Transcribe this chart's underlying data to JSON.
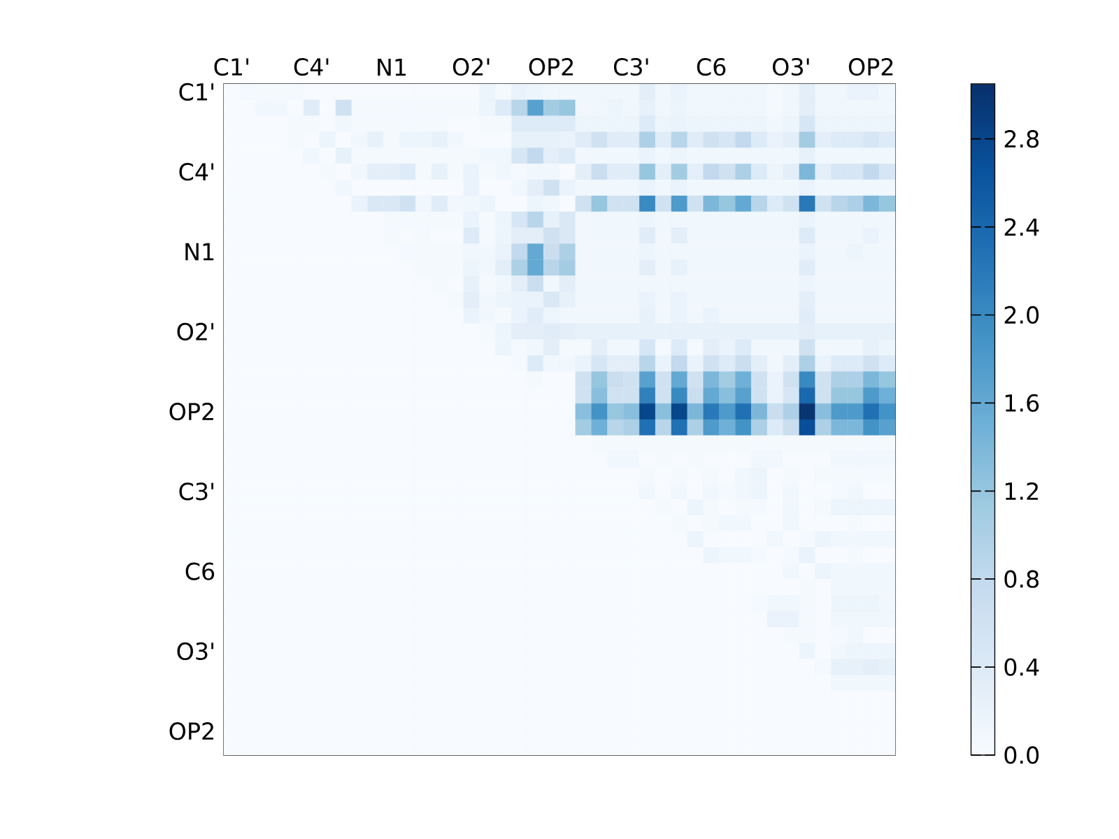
{
  "chart_data": {
    "type": "heatmap",
    "categories": [
      "C1'",
      null,
      null,
      null,
      null,
      "C4'",
      null,
      null,
      null,
      null,
      "N1",
      null,
      null,
      null,
      null,
      "O2'",
      null,
      null,
      null,
      null,
      "OP2",
      null,
      null,
      null,
      null,
      "C3'",
      null,
      null,
      null,
      null,
      "C6",
      null,
      null,
      null,
      null,
      "O3'",
      null,
      null,
      null,
      null,
      "OP2",
      null
    ],
    "y_categories": [
      "C1'",
      null,
      null,
      null,
      null,
      "C4'",
      null,
      null,
      null,
      null,
      "N1",
      null,
      null,
      null,
      null,
      "O2'",
      null,
      null,
      null,
      null,
      "OP2",
      null,
      null,
      null,
      null,
      "C3'",
      null,
      null,
      null,
      null,
      "C6",
      null,
      null,
      null,
      null,
      "O3'",
      null,
      null,
      null,
      null,
      "OP2",
      null
    ],
    "clim": [
      0,
      3.05
    ],
    "cticks": [
      {
        "value": 0,
        "label": "0.0"
      },
      0.4,
      0.8,
      1.2,
      1.6,
      {
        "value": 2,
        "label": "2.0"
      },
      2.4,
      2.8
    ],
    "cells": [
      [
        0,
        0.05,
        0.05,
        0.05,
        0.05,
        0,
        0,
        0,
        0,
        0,
        0,
        0,
        0,
        0,
        0,
        0,
        0.15,
        0.05,
        0.2,
        0.15,
        0.1,
        0.1,
        0.1,
        0.1,
        0.1,
        0.1,
        0.3,
        0.1,
        0.2,
        0.1,
        0.1,
        0.1,
        0.1,
        0.1,
        0.05,
        0.1,
        0.3,
        0.1,
        0.1,
        0.2,
        0.2,
        0.1
      ],
      [
        0,
        0,
        0.1,
        0.1,
        0,
        0.35,
        0,
        0.6,
        0.05,
        0.05,
        0.05,
        0.05,
        0.05,
        0.05,
        0.05,
        0.05,
        0.15,
        0.4,
        0.9,
        1.7,
        1.1,
        1.2,
        0.1,
        0.1,
        0.15,
        0.1,
        0.25,
        0.1,
        0.15,
        0.1,
        0.1,
        0.1,
        0.1,
        0.1,
        0.05,
        0.1,
        0.3,
        0.1,
        0.1,
        0.1,
        0.1,
        0.1
      ],
      [
        0,
        0,
        0,
        0,
        0.05,
        0.05,
        0,
        0.1,
        0.05,
        0.05,
        0.05,
        0.05,
        0.05,
        0.05,
        0,
        0,
        0.05,
        0.05,
        0.4,
        0.4,
        0.4,
        0.4,
        0.15,
        0.15,
        0.15,
        0.15,
        0.4,
        0.15,
        0.2,
        0.15,
        0.15,
        0.15,
        0.15,
        0.15,
        0.1,
        0.15,
        0.5,
        0.15,
        0.15,
        0.15,
        0.15,
        0.15
      ],
      [
        0,
        0,
        0,
        0,
        0.05,
        0,
        0.15,
        0,
        0.1,
        0.25,
        0.05,
        0.15,
        0.15,
        0.25,
        0.1,
        0,
        0,
        0,
        0.25,
        0.25,
        0.25,
        0.2,
        0.35,
        0.6,
        0.35,
        0.35,
        1.0,
        0.35,
        0.9,
        0.35,
        0.6,
        0.5,
        0.8,
        0.4,
        0.2,
        0.3,
        1.1,
        0.3,
        0.4,
        0.4,
        0.5,
        0.4
      ],
      [
        0,
        0,
        0,
        0,
        0,
        0.1,
        0,
        0.25,
        0.05,
        0.05,
        0.05,
        0.05,
        0.05,
        0.05,
        0.05,
        0.05,
        0.1,
        0.1,
        0.5,
        0.8,
        0.3,
        0.4,
        0.1,
        0.1,
        0.1,
        0.1,
        0.2,
        0.1,
        0.15,
        0.1,
        0.1,
        0.1,
        0.1,
        0.1,
        0.1,
        0.1,
        0.25,
        0.1,
        0.1,
        0.1,
        0.1,
        0.1
      ],
      [
        0,
        0,
        0,
        0,
        0,
        0,
        0.05,
        0,
        0.1,
        0.3,
        0.3,
        0.4,
        0.05,
        0.25,
        0.05,
        0.2,
        0.05,
        0.1,
        0.05,
        0.1,
        0.1,
        0,
        0.3,
        0.7,
        0.35,
        0.35,
        1.2,
        0.3,
        1.1,
        0.3,
        0.8,
        0.6,
        1.0,
        0.4,
        0.15,
        0.3,
        1.4,
        0.3,
        0.5,
        0.5,
        0.8,
        0.5
      ],
      [
        0,
        0,
        0,
        0,
        0,
        0,
        0,
        0.1,
        0,
        0,
        0,
        0,
        0,
        0,
        0,
        0.2,
        0,
        0,
        0.1,
        0.3,
        0.6,
        0.2,
        0.1,
        0.1,
        0.1,
        0.1,
        0.2,
        0.1,
        0.2,
        0.1,
        0.1,
        0.1,
        0.1,
        0.1,
        0.1,
        0.1,
        0.2,
        0.1,
        0.1,
        0.1,
        0.1,
        0.1
      ],
      [
        0,
        0,
        0,
        0,
        0,
        0,
        0,
        0,
        0.2,
        0.45,
        0.45,
        0.6,
        0.1,
        0.35,
        0.1,
        0.1,
        0.15,
        0,
        0,
        0.15,
        0.1,
        0,
        0.6,
        1.2,
        0.6,
        0.6,
        2.0,
        0.6,
        1.8,
        0.6,
        1.4,
        1.2,
        1.6,
        0.9,
        0.4,
        0.6,
        2.2,
        0.6,
        0.9,
        1.0,
        1.4,
        1.2
      ],
      [
        0,
        0,
        0,
        0,
        0,
        0,
        0,
        0,
        0,
        0,
        0.05,
        0.05,
        0.05,
        0.05,
        0.05,
        0.2,
        0.05,
        0.15,
        0.5,
        0.9,
        0.25,
        0.45,
        0.1,
        0.1,
        0.1,
        0.1,
        0.15,
        0.1,
        0.1,
        0.1,
        0.1,
        0.1,
        0.1,
        0.1,
        0.1,
        0.1,
        0.2,
        0.1,
        0.1,
        0.1,
        0.1,
        0.1
      ],
      [
        0,
        0,
        0,
        0,
        0,
        0,
        0,
        0,
        0,
        0,
        0.05,
        0,
        0.05,
        0,
        0,
        0.4,
        0.05,
        0.15,
        0.3,
        0.3,
        0.6,
        0.45,
        0.1,
        0.1,
        0.1,
        0.1,
        0.35,
        0.1,
        0.3,
        0.1,
        0.1,
        0.1,
        0.1,
        0.1,
        0.1,
        0.1,
        0.4,
        0.1,
        0.1,
        0.1,
        0.2,
        0.1
      ],
      [
        0,
        0,
        0,
        0,
        0,
        0,
        0,
        0,
        0,
        0,
        0,
        0.05,
        0.05,
        0.05,
        0.05,
        0.1,
        0.1,
        0.2,
        0.8,
        1.6,
        0.7,
        1.0,
        0.1,
        0.1,
        0.1,
        0.1,
        0.15,
        0.1,
        0.1,
        0.1,
        0.1,
        0.1,
        0.1,
        0.1,
        0.1,
        0.1,
        0.2,
        0.1,
        0.1,
        0.15,
        0.1,
        0.1
      ],
      [
        0,
        0,
        0,
        0,
        0,
        0,
        0,
        0,
        0,
        0,
        0,
        0,
        0.05,
        0.05,
        0.05,
        0.15,
        0.1,
        0.3,
        1.0,
        1.6,
        0.9,
        1.1,
        0.1,
        0.1,
        0.1,
        0.1,
        0.3,
        0.1,
        0.25,
        0.1,
        0.1,
        0.1,
        0.1,
        0.1,
        0.1,
        0.1,
        0.35,
        0.1,
        0.1,
        0.1,
        0.1,
        0.1
      ],
      [
        0,
        0,
        0,
        0,
        0,
        0,
        0,
        0,
        0,
        0,
        0,
        0,
        0,
        0.05,
        0,
        0.25,
        0.05,
        0.1,
        0.3,
        0.7,
        0.1,
        0.3,
        0.1,
        0.1,
        0.1,
        0.1,
        0.1,
        0.1,
        0.1,
        0.1,
        0.1,
        0.1,
        0.1,
        0.1,
        0.1,
        0.1,
        0.15,
        0.1,
        0.1,
        0.1,
        0.1,
        0.1
      ],
      [
        0,
        0,
        0,
        0,
        0,
        0,
        0,
        0,
        0,
        0,
        0,
        0,
        0,
        0,
        0.05,
        0.3,
        0.1,
        0.15,
        0.2,
        0.2,
        0.45,
        0.25,
        0.1,
        0.1,
        0.1,
        0.1,
        0.2,
        0.1,
        0.2,
        0.1,
        0.1,
        0.1,
        0.1,
        0.1,
        0.1,
        0.1,
        0.3,
        0.1,
        0.1,
        0.1,
        0.1,
        0.1
      ],
      [
        0,
        0,
        0,
        0,
        0,
        0,
        0,
        0,
        0,
        0,
        0,
        0,
        0,
        0,
        0,
        0.2,
        0.1,
        0.05,
        0.2,
        0.35,
        0.15,
        0.1,
        0.1,
        0.1,
        0.1,
        0.1,
        0.25,
        0.1,
        0.2,
        0.1,
        0.2,
        0.1,
        0.1,
        0.1,
        0.1,
        0.1,
        0.35,
        0.1,
        0.1,
        0.1,
        0.1,
        0.1
      ],
      [
        0,
        0,
        0,
        0,
        0,
        0,
        0,
        0,
        0,
        0,
        0,
        0,
        0,
        0,
        0,
        0,
        0.05,
        0.15,
        0.3,
        0.3,
        0.35,
        0.3,
        0.25,
        0.25,
        0.25,
        0.25,
        0.25,
        0.25,
        0.25,
        0.25,
        0.25,
        0.25,
        0.25,
        0.25,
        0.25,
        0.25,
        0.3,
        0.25,
        0.25,
        0.25,
        0.25,
        0.25
      ],
      [
        0,
        0,
        0,
        0,
        0,
        0,
        0,
        0,
        0,
        0,
        0,
        0,
        0,
        0,
        0,
        0,
        0,
        0.15,
        0.05,
        0.1,
        0.3,
        0.05,
        0.05,
        0.3,
        0.1,
        0.1,
        0.5,
        0.05,
        0.4,
        0.05,
        0.3,
        0.2,
        0.4,
        0.1,
        0.1,
        0.1,
        0.6,
        0.1,
        0.1,
        0.1,
        0.25,
        0.15
      ],
      [
        0,
        0,
        0,
        0,
        0,
        0,
        0,
        0,
        0,
        0,
        0,
        0,
        0,
        0,
        0,
        0,
        0,
        0,
        0.05,
        0.4,
        0.1,
        0.1,
        0.2,
        0.5,
        0.3,
        0.3,
        0.9,
        0.2,
        0.8,
        0.2,
        0.6,
        0.4,
        0.7,
        0.3,
        0.1,
        0.3,
        1.0,
        0.2,
        0.4,
        0.4,
        0.6,
        0.4
      ],
      [
        0,
        0,
        0,
        0,
        0,
        0,
        0,
        0,
        0,
        0,
        0,
        0,
        0,
        0,
        0,
        0,
        0,
        0,
        0,
        0.05,
        0,
        0,
        0.6,
        1.2,
        0.7,
        0.6,
        1.7,
        0.6,
        1.6,
        0.6,
        1.4,
        1.1,
        1.5,
        0.6,
        0.2,
        0.6,
        2.0,
        0.6,
        1.0,
        1.0,
        1.4,
        1.2
      ],
      [
        0,
        0,
        0,
        0,
        0,
        0,
        0,
        0,
        0,
        0,
        0,
        0,
        0,
        0,
        0,
        0,
        0,
        0,
        0,
        0,
        0,
        0,
        0.6,
        1.3,
        0.6,
        0.6,
        2.1,
        0.6,
        2.0,
        0.7,
        1.6,
        1.3,
        1.7,
        0.6,
        0.2,
        0.5,
        2.4,
        0.6,
        1.2,
        1.2,
        1.8,
        1.5
      ],
      [
        0,
        0,
        0,
        0,
        0,
        0,
        0,
        0,
        0,
        0,
        0,
        0,
        0,
        0,
        0,
        0,
        0,
        0,
        0,
        0,
        0,
        0,
        1.3,
        1.9,
        1.2,
        1.3,
        2.8,
        1.3,
        2.8,
        1.4,
        2.2,
        1.8,
        2.3,
        1.4,
        0.7,
        1.0,
        3.0,
        1.3,
        1.8,
        1.8,
        2.3,
        1.9
      ],
      [
        0,
        0,
        0,
        0,
        0,
        0,
        0,
        0,
        0,
        0,
        0,
        0,
        0,
        0,
        0,
        0,
        0,
        0,
        0,
        0,
        0,
        0,
        1.1,
        1.5,
        0.9,
        1.0,
        2.3,
        0.9,
        2.3,
        1.0,
        1.8,
        1.5,
        1.9,
        1.0,
        0.4,
        0.7,
        2.7,
        1.0,
        1.4,
        1.4,
        1.9,
        1.7
      ],
      [
        0,
        0,
        0,
        0,
        0,
        0,
        0,
        0,
        0,
        0,
        0,
        0,
        0,
        0,
        0,
        0,
        0,
        0,
        0,
        0,
        0,
        0,
        0,
        0.05,
        0.05,
        0.05,
        0.05,
        0.05,
        0.05,
        0.05,
        0.05,
        0.05,
        0.05,
        0.05,
        0.05,
        0.05,
        0.05,
        0.05,
        0.05,
        0.05,
        0.05,
        0.05
      ],
      [
        0,
        0,
        0,
        0,
        0,
        0,
        0,
        0,
        0,
        0,
        0,
        0,
        0,
        0,
        0,
        0,
        0,
        0,
        0,
        0,
        0,
        0,
        0,
        0,
        0.1,
        0.1,
        0,
        0.05,
        0,
        0.05,
        0,
        0,
        0,
        0.1,
        0.1,
        0,
        0,
        0,
        0.1,
        0.1,
        0.1,
        0.1
      ],
      [
        0,
        0,
        0,
        0,
        0,
        0,
        0,
        0,
        0,
        0,
        0,
        0,
        0,
        0,
        0,
        0,
        0,
        0,
        0,
        0,
        0,
        0,
        0,
        0,
        0,
        0,
        0.05,
        0,
        0.05,
        0,
        0.05,
        0,
        0.1,
        0.15,
        0,
        0.05,
        0,
        0.05,
        0.05,
        0.05,
        0.05,
        0.05
      ],
      [
        0,
        0,
        0,
        0,
        0,
        0,
        0,
        0,
        0,
        0,
        0,
        0,
        0,
        0,
        0,
        0,
        0,
        0,
        0,
        0,
        0,
        0,
        0,
        0,
        0,
        0,
        0.1,
        0,
        0.1,
        0,
        0.1,
        0.05,
        0.1,
        0.15,
        0,
        0.1,
        0,
        0,
        0.05,
        0.1,
        0,
        0
      ],
      [
        0,
        0,
        0,
        0,
        0,
        0,
        0,
        0,
        0,
        0,
        0,
        0,
        0,
        0,
        0,
        0,
        0,
        0,
        0,
        0,
        0,
        0,
        0,
        0,
        0,
        0,
        0,
        0.05,
        0,
        0.15,
        0.05,
        0,
        0.05,
        0.05,
        0,
        0.1,
        0,
        0.05,
        0.15,
        0.15,
        0.15,
        0.15
      ],
      [
        0,
        0,
        0,
        0,
        0,
        0,
        0,
        0,
        0,
        0,
        0,
        0,
        0,
        0,
        0,
        0,
        0,
        0,
        0,
        0,
        0,
        0,
        0,
        0,
        0,
        0,
        0,
        0,
        0.05,
        0,
        0.05,
        0.1,
        0.1,
        0,
        0,
        0.1,
        0,
        0,
        0,
        0.05,
        0,
        0
      ],
      [
        0,
        0,
        0,
        0,
        0,
        0,
        0,
        0,
        0,
        0,
        0,
        0,
        0,
        0,
        0,
        0,
        0,
        0,
        0,
        0,
        0,
        0,
        0,
        0,
        0,
        0,
        0,
        0,
        0,
        0.15,
        0,
        0,
        0,
        0,
        0.1,
        0,
        0.05,
        0.15,
        0.1,
        0.1,
        0.1,
        0.1
      ],
      [
        0,
        0,
        0,
        0,
        0,
        0,
        0,
        0,
        0,
        0,
        0,
        0,
        0,
        0,
        0,
        0,
        0,
        0,
        0,
        0,
        0,
        0,
        0,
        0,
        0,
        0,
        0,
        0,
        0,
        0,
        0.15,
        0.1,
        0.1,
        0.05,
        0,
        0.05,
        0.2,
        0,
        0,
        0.05,
        0,
        0
      ],
      [
        0,
        0,
        0,
        0,
        0,
        0,
        0,
        0,
        0,
        0,
        0,
        0,
        0,
        0,
        0,
        0,
        0,
        0,
        0,
        0,
        0,
        0,
        0,
        0,
        0,
        0,
        0,
        0,
        0,
        0,
        0,
        0,
        0,
        0,
        0,
        0.1,
        0,
        0.15,
        0.1,
        0.1,
        0.1,
        0.1
      ],
      [
        0,
        0,
        0,
        0,
        0,
        0,
        0,
        0,
        0,
        0,
        0,
        0,
        0,
        0,
        0,
        0,
        0,
        0,
        0,
        0,
        0,
        0,
        0,
        0,
        0,
        0,
        0,
        0,
        0,
        0,
        0,
        0,
        0,
        0,
        0,
        0,
        0.05,
        0,
        0.1,
        0.1,
        0.1,
        0.1
      ],
      [
        0,
        0,
        0,
        0,
        0,
        0,
        0,
        0,
        0,
        0,
        0,
        0,
        0,
        0,
        0,
        0,
        0,
        0,
        0,
        0,
        0,
        0,
        0,
        0,
        0,
        0,
        0,
        0,
        0,
        0,
        0,
        0,
        0,
        0.05,
        0.1,
        0.1,
        0.05,
        0,
        0.15,
        0.15,
        0.15,
        0.1
      ],
      [
        0,
        0,
        0,
        0,
        0,
        0,
        0,
        0,
        0,
        0,
        0,
        0,
        0,
        0,
        0,
        0,
        0,
        0,
        0,
        0,
        0,
        0,
        0,
        0,
        0,
        0,
        0,
        0,
        0,
        0,
        0,
        0,
        0,
        0,
        0.2,
        0.2,
        0.05,
        0,
        0.1,
        0.1,
        0.1,
        0.1
      ],
      [
        0,
        0,
        0,
        0,
        0,
        0,
        0,
        0,
        0,
        0,
        0,
        0,
        0,
        0,
        0,
        0,
        0,
        0,
        0,
        0,
        0,
        0,
        0,
        0,
        0,
        0,
        0,
        0,
        0,
        0,
        0,
        0,
        0,
        0,
        0,
        0.05,
        0.05,
        0,
        0.05,
        0.1,
        0,
        0
      ],
      [
        0,
        0,
        0,
        0,
        0,
        0,
        0,
        0,
        0,
        0,
        0,
        0,
        0,
        0,
        0,
        0,
        0,
        0,
        0,
        0,
        0,
        0,
        0,
        0,
        0,
        0,
        0,
        0,
        0,
        0,
        0,
        0,
        0,
        0,
        0,
        0,
        0.15,
        0,
        0.1,
        0.15,
        0.15,
        0.15
      ],
      [
        0,
        0,
        0,
        0,
        0,
        0,
        0,
        0,
        0,
        0,
        0,
        0,
        0,
        0,
        0,
        0,
        0,
        0,
        0,
        0,
        0,
        0,
        0,
        0,
        0,
        0,
        0,
        0,
        0,
        0,
        0,
        0,
        0,
        0,
        0,
        0,
        0,
        0.05,
        0.25,
        0.25,
        0.3,
        0.25
      ],
      [
        0,
        0,
        0,
        0,
        0,
        0,
        0,
        0,
        0,
        0,
        0,
        0,
        0,
        0,
        0,
        0,
        0,
        0,
        0,
        0,
        0,
        0,
        0,
        0,
        0,
        0,
        0,
        0,
        0,
        0,
        0,
        0,
        0,
        0,
        0,
        0,
        0,
        0,
        0.1,
        0.1,
        0.1,
        0.1
      ],
      [
        0,
        0,
        0,
        0,
        0,
        0,
        0,
        0,
        0,
        0,
        0,
        0,
        0,
        0,
        0,
        0,
        0,
        0,
        0,
        0,
        0,
        0,
        0,
        0,
        0,
        0,
        0,
        0,
        0,
        0,
        0,
        0,
        0,
        0,
        0,
        0,
        0,
        0,
        0,
        0,
        0,
        0
      ],
      [
        0,
        0,
        0,
        0,
        0,
        0,
        0,
        0,
        0,
        0,
        0,
        0,
        0,
        0,
        0,
        0,
        0,
        0,
        0,
        0,
        0,
        0,
        0,
        0,
        0,
        0,
        0,
        0,
        0,
        0,
        0,
        0,
        0,
        0,
        0,
        0,
        0,
        0,
        0,
        0,
        0,
        0
      ],
      [
        0,
        0,
        0,
        0,
        0,
        0,
        0,
        0,
        0,
        0,
        0,
        0,
        0,
        0,
        0,
        0,
        0,
        0,
        0,
        0,
        0,
        0,
        0,
        0,
        0,
        0,
        0,
        0,
        0,
        0,
        0,
        0,
        0,
        0,
        0,
        0,
        0,
        0,
        0,
        0,
        0,
        0
      ],
      [
        0,
        0,
        0,
        0,
        0,
        0,
        0,
        0,
        0,
        0,
        0,
        0,
        0,
        0,
        0,
        0,
        0,
        0,
        0,
        0,
        0,
        0,
        0,
        0,
        0,
        0,
        0,
        0,
        0,
        0,
        0,
        0,
        0,
        0,
        0,
        0,
        0,
        0,
        0,
        0,
        0,
        0
      ]
    ]
  }
}
